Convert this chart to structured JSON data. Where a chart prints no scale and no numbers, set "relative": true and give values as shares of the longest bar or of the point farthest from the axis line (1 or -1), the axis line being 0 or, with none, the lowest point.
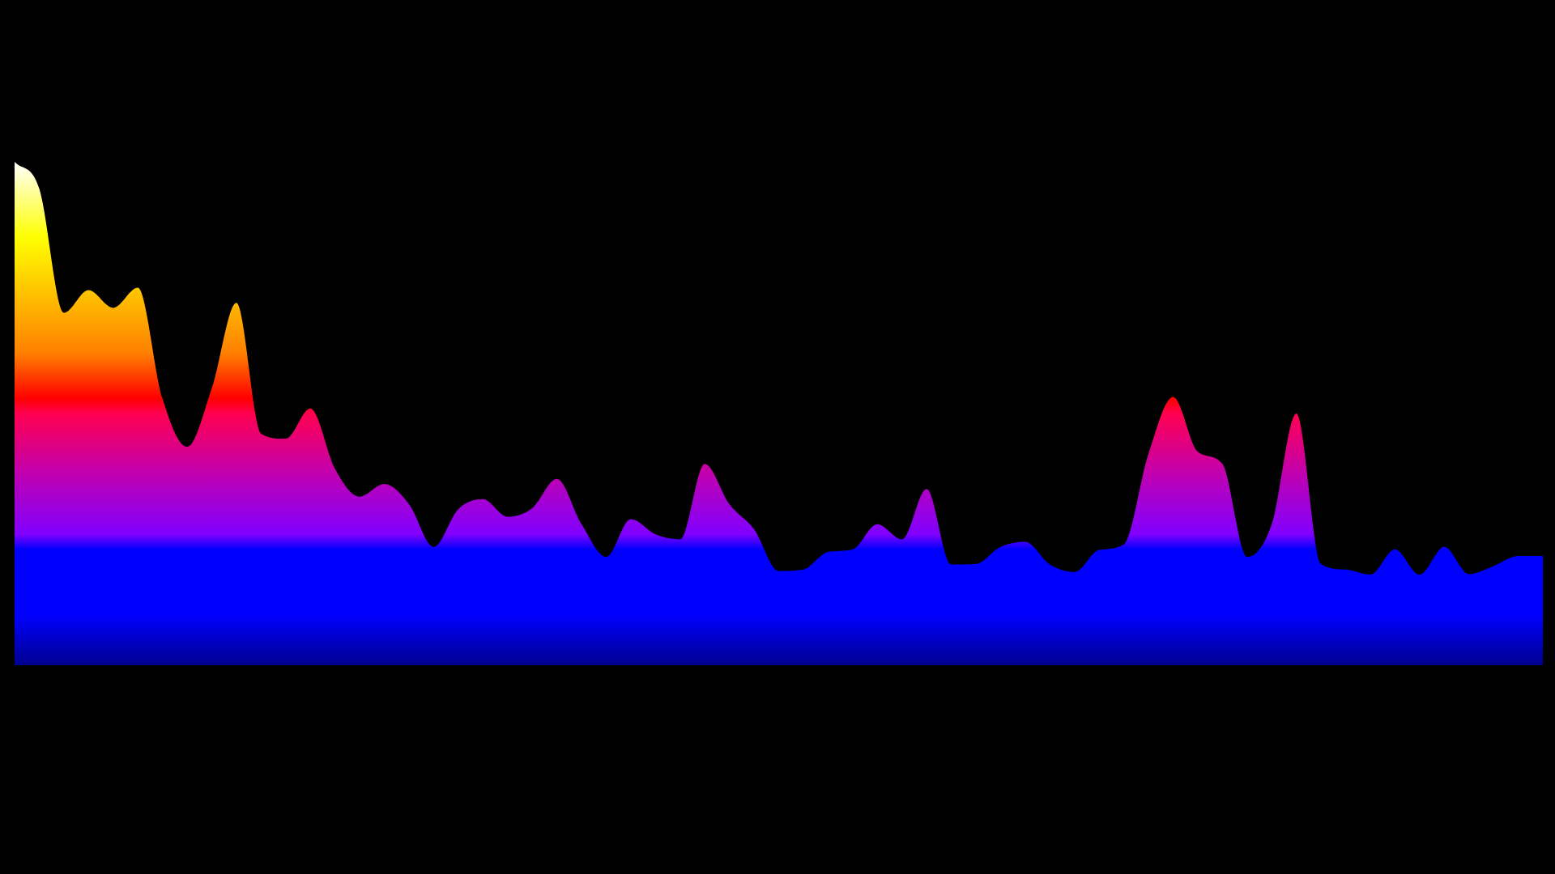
{
  "chart_data": {
    "type": "area",
    "relative": true,
    "color": "#0000ff",
    "categories": [
      null,
      null,
      null,
      null,
      null,
      null,
      null,
      null,
      null,
      null,
      null,
      null,
      null,
      null,
      null,
      null,
      null,
      null,
      null,
      null,
      null,
      null,
      null,
      null,
      null,
      null,
      null,
      null,
      null,
      null,
      null,
      null,
      null,
      null,
      null,
      null,
      null,
      null,
      null,
      null,
      null,
      null,
      null,
      null,
      null,
      null,
      null,
      null,
      null,
      null,
      null,
      null,
      null,
      null,
      null,
      null,
      null,
      null,
      null,
      null,
      null,
      null,
      null
    ],
    "values": [
      1.0,
      0.947,
      0.7,
      0.745,
      0.71,
      0.75,
      0.53,
      0.434,
      0.55,
      0.72,
      0.46,
      0.45,
      0.51,
      0.39,
      0.335,
      0.36,
      0.32,
      0.235,
      0.31,
      0.33,
      0.295,
      0.312,
      0.37,
      0.28,
      0.215,
      0.29,
      0.26,
      0.25,
      0.4,
      0.32,
      0.27,
      0.187,
      0.19,
      0.225,
      0.23,
      0.28,
      0.25,
      0.35,
      0.2,
      0.201,
      0.235,
      0.245,
      0.2,
      0.185,
      0.229,
      0.24,
      0.42,
      0.533,
      0.424,
      0.4,
      0.215,
      0.28,
      0.5,
      0.201,
      0.19,
      0.18,
      0.23,
      0.18,
      0.235,
      0.181,
      0.197,
      0.217,
      0.217
    ]
  }
}
